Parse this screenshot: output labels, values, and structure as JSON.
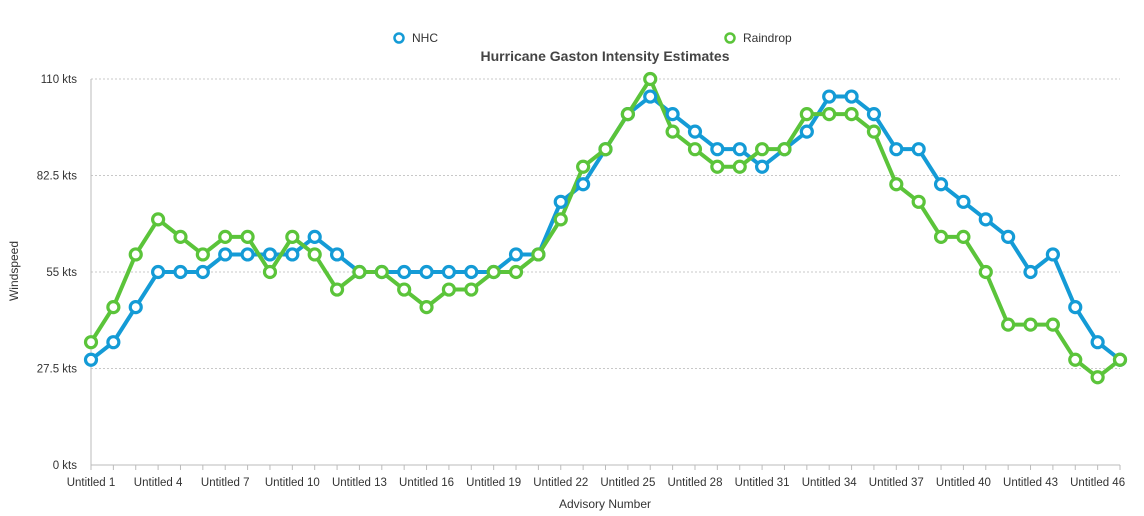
{
  "chart_data": {
    "type": "line",
    "title": "Hurricane Gaston Intensity Estimates",
    "xlabel": "Advisory Number",
    "ylabel": "Windspeed",
    "ylim": [
      0,
      110
    ],
    "yticks": [
      0,
      27.5,
      55,
      82.5,
      110
    ],
    "ytick_labels": [
      "0 kts",
      "27.5 kts",
      "55 kts",
      "82.5 kts",
      "110 kts"
    ],
    "x_label_step": 3,
    "legend_position": "top-center",
    "grid": true,
    "categories": [
      "Untitled 1",
      "Untitled 2",
      "Untitled 3",
      "Untitled 4",
      "Untitled 5",
      "Untitled 6",
      "Untitled 7",
      "Untitled 8",
      "Untitled 9",
      "Untitled 10",
      "Untitled 11",
      "Untitled 12",
      "Untitled 13",
      "Untitled 14",
      "Untitled 15",
      "Untitled 16",
      "Untitled 17",
      "Untitled 18",
      "Untitled 19",
      "Untitled 20",
      "Untitled 21",
      "Untitled 22",
      "Untitled 23",
      "Untitled 24",
      "Untitled 25",
      "Untitled 26",
      "Untitled 27",
      "Untitled 28",
      "Untitled 29",
      "Untitled 30",
      "Untitled 31",
      "Untitled 32",
      "Untitled 33",
      "Untitled 34",
      "Untitled 35",
      "Untitled 36",
      "Untitled 37",
      "Untitled 38",
      "Untitled 39",
      "Untitled 40",
      "Untitled 41",
      "Untitled 42",
      "Untitled 43",
      "Untitled 44",
      "Untitled 45",
      "Untitled 46",
      "Untitled 47"
    ],
    "series": [
      {
        "name": "NHC",
        "color": "#149bd6",
        "values": [
          30,
          35,
          45,
          55,
          55,
          55,
          60,
          60,
          60,
          60,
          65,
          60,
          55,
          55,
          55,
          55,
          55,
          55,
          55,
          60,
          60,
          75,
          80,
          90,
          100,
          105,
          100,
          95,
          90,
          90,
          85,
          90,
          95,
          105,
          105,
          100,
          90,
          90,
          80,
          75,
          70,
          65,
          55,
          60,
          45,
          35,
          30
        ]
      },
      {
        "name": "Raindrop",
        "color": "#5bc43a",
        "values": [
          35,
          45,
          60,
          70,
          65,
          60,
          65,
          65,
          55,
          65,
          60,
          50,
          55,
          55,
          50,
          45,
          50,
          50,
          55,
          55,
          60,
          70,
          85,
          90,
          100,
          110,
          95,
          90,
          85,
          85,
          90,
          90,
          100,
          100,
          100,
          95,
          80,
          75,
          65,
          65,
          55,
          40,
          40,
          40,
          30,
          25,
          30
        ]
      }
    ]
  }
}
